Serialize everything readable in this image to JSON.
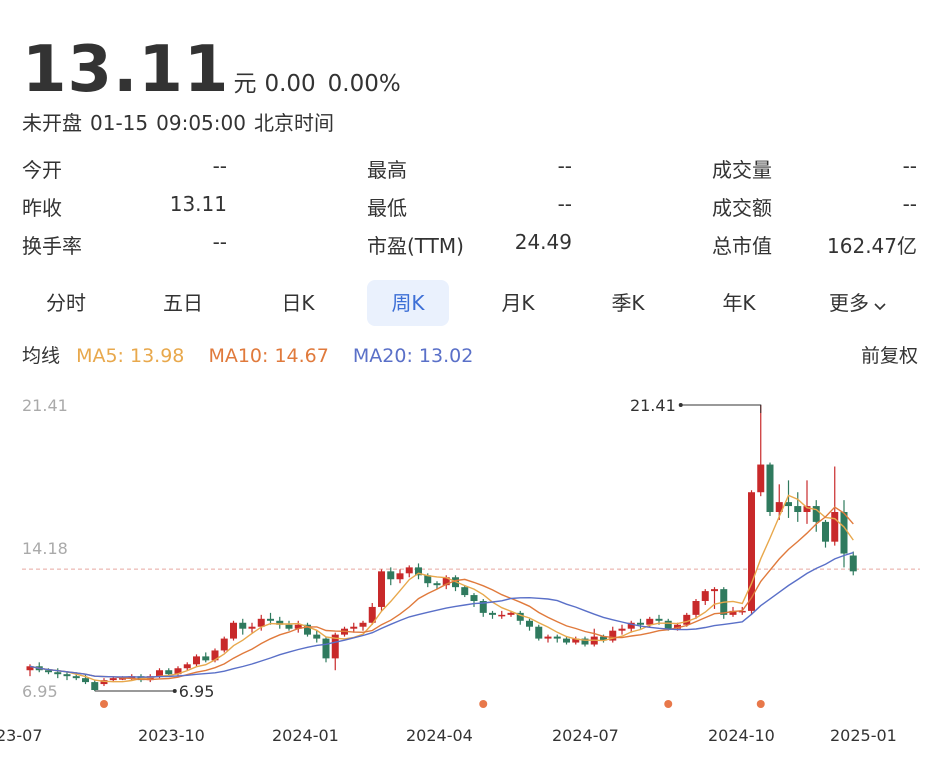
{
  "quote": {
    "price": "13.11",
    "unit": "元",
    "change": "0.00",
    "change_pct": "0.00%",
    "status": "未开盘",
    "date": "01-15",
    "time": "09:05:00",
    "timezone": "北京时间"
  },
  "stats": [
    {
      "label": "今开",
      "value": "--"
    },
    {
      "label": "最高",
      "value": "--"
    },
    {
      "label": "成交量",
      "value": "--"
    },
    {
      "label": "昨收",
      "value": "13.11"
    },
    {
      "label": "最低",
      "value": "--"
    },
    {
      "label": "成交额",
      "value": "--"
    },
    {
      "label": "换手率",
      "value": "--"
    },
    {
      "label": "市盈(TTM)",
      "value": "24.49"
    },
    {
      "label": "总市值",
      "value": "162.47亿"
    }
  ],
  "tabs": [
    "分时",
    "五日",
    "日K",
    "周K",
    "月K",
    "季K",
    "年K",
    "更多"
  ],
  "active_tab": "周K",
  "more_icon": "chevron-down-icon",
  "ma": {
    "title": "均线",
    "ma5": "MA5: 13.98",
    "ma10": "MA10: 14.67",
    "ma20": "MA20: 13.02",
    "adjust": "前复权"
  },
  "colors": {
    "up": "#c8292a",
    "down": "#2f7a5e",
    "ma5": "#e8a84c",
    "ma10": "#e07a3c",
    "ma20": "#5a70c8",
    "accent": "#3d6fd6",
    "ref_line": "#e8a8a0",
    "dot": "#e8784a"
  },
  "chart_data": {
    "type": "candlestick",
    "y_labels": [
      "21.41",
      "14.18",
      "6.95"
    ],
    "y_range": [
      6.95,
      21.41
    ],
    "reference_price": 13.11,
    "x_labels": [
      "23-07",
      "2023-10",
      "2024-01",
      "2024-04",
      "2024-07",
      "2024-10",
      "2025-01"
    ],
    "annotations": {
      "high": "21.41",
      "low": "6.95"
    },
    "candles": [
      [
        8.0,
        8.2,
        7.7,
        8.3
      ],
      [
        8.2,
        8.0,
        7.9,
        8.4
      ],
      [
        8.0,
        7.9,
        7.8,
        8.1
      ],
      [
        7.9,
        7.8,
        7.6,
        8.1
      ],
      [
        7.8,
        7.7,
        7.5,
        7.9
      ],
      [
        7.7,
        7.6,
        7.5,
        7.9
      ],
      [
        7.6,
        7.4,
        7.3,
        7.8
      ],
      [
        7.4,
        7.0,
        6.95,
        7.5
      ],
      [
        7.3,
        7.5,
        7.2,
        7.6
      ],
      [
        7.5,
        7.6,
        7.4,
        7.7
      ],
      [
        7.6,
        7.6,
        7.5,
        7.7
      ],
      [
        7.6,
        7.7,
        7.5,
        7.8
      ],
      [
        7.7,
        7.5,
        7.4,
        7.8
      ],
      [
        7.5,
        7.7,
        7.4,
        7.8
      ],
      [
        7.7,
        8.0,
        7.6,
        8.1
      ],
      [
        8.0,
        7.8,
        7.7,
        8.1
      ],
      [
        7.8,
        8.1,
        7.7,
        8.2
      ],
      [
        8.1,
        8.3,
        8.0,
        8.4
      ],
      [
        8.3,
        8.7,
        8.2,
        8.8
      ],
      [
        8.7,
        8.5,
        8.4,
        8.9
      ],
      [
        8.5,
        9.0,
        8.4,
        9.1
      ],
      [
        9.0,
        9.6,
        8.9,
        9.7
      ],
      [
        9.6,
        10.4,
        9.5,
        10.5
      ],
      [
        10.4,
        10.1,
        9.8,
        10.6
      ],
      [
        10.1,
        10.2,
        9.9,
        10.4
      ],
      [
        10.2,
        10.6,
        10.0,
        10.8
      ],
      [
        10.6,
        10.5,
        10.3,
        10.9
      ],
      [
        10.5,
        10.3,
        10.1,
        10.7
      ],
      [
        10.3,
        10.1,
        10.0,
        10.5
      ],
      [
        10.1,
        10.3,
        9.9,
        10.5
      ],
      [
        10.3,
        9.8,
        9.7,
        10.4
      ],
      [
        9.8,
        9.6,
        9.4,
        10.0
      ],
      [
        9.6,
        8.6,
        8.4,
        9.7
      ],
      [
        8.6,
        9.8,
        8.0,
        9.9
      ],
      [
        9.8,
        10.1,
        9.7,
        10.2
      ],
      [
        10.1,
        10.2,
        9.9,
        10.4
      ],
      [
        10.2,
        10.4,
        10.0,
        10.5
      ],
      [
        10.4,
        11.2,
        10.3,
        11.4
      ],
      [
        11.2,
        13.0,
        11.0,
        13.1
      ],
      [
        13.0,
        12.6,
        12.3,
        13.2
      ],
      [
        12.6,
        12.9,
        12.4,
        13.1
      ],
      [
        12.9,
        13.2,
        12.7,
        13.3
      ],
      [
        13.2,
        12.8,
        12.6,
        13.4
      ],
      [
        12.8,
        12.4,
        12.2,
        12.9
      ],
      [
        12.4,
        12.3,
        12.1,
        12.5
      ],
      [
        12.3,
        12.7,
        12.1,
        12.8
      ],
      [
        12.7,
        12.2,
        12.0,
        12.8
      ],
      [
        12.2,
        11.8,
        11.7,
        12.3
      ],
      [
        11.8,
        11.5,
        11.2,
        11.9
      ],
      [
        11.5,
        10.9,
        10.7,
        11.6
      ],
      [
        10.9,
        10.8,
        10.6,
        11.0
      ],
      [
        10.8,
        10.8,
        10.6,
        11.0
      ],
      [
        10.8,
        10.9,
        10.7,
        11.0
      ],
      [
        10.9,
        10.5,
        10.3,
        11.0
      ],
      [
        10.5,
        10.2,
        10.0,
        10.6
      ],
      [
        10.2,
        9.6,
        9.5,
        10.3
      ],
      [
        9.6,
        9.7,
        9.4,
        9.8
      ],
      [
        9.7,
        9.6,
        9.4,
        9.8
      ],
      [
        9.6,
        9.4,
        9.3,
        9.7
      ],
      [
        9.4,
        9.6,
        9.3,
        9.7
      ],
      [
        9.6,
        9.3,
        9.2,
        9.7
      ],
      [
        9.3,
        9.7,
        9.2,
        10.1
      ],
      [
        9.7,
        9.5,
        9.4,
        9.8
      ],
      [
        9.5,
        10.0,
        9.4,
        10.2
      ],
      [
        10.0,
        10.1,
        9.8,
        10.3
      ],
      [
        10.1,
        10.4,
        9.9,
        10.5
      ],
      [
        10.4,
        10.3,
        10.1,
        10.6
      ],
      [
        10.3,
        10.6,
        10.2,
        10.7
      ],
      [
        10.6,
        10.5,
        10.3,
        10.8
      ],
      [
        10.5,
        10.1,
        10.0,
        10.6
      ],
      [
        10.1,
        10.3,
        10.0,
        10.4
      ],
      [
        10.3,
        10.8,
        10.2,
        10.9
      ],
      [
        10.8,
        11.5,
        10.6,
        11.6
      ],
      [
        11.5,
        12.0,
        11.3,
        12.1
      ],
      [
        12.0,
        12.1,
        11.1,
        12.2
      ],
      [
        12.1,
        10.8,
        10.6,
        12.2
      ],
      [
        10.8,
        11.0,
        10.7,
        11.2
      ],
      [
        11.0,
        11.0,
        10.8,
        11.2
      ],
      [
        11.0,
        17.0,
        10.8,
        17.1
      ],
      [
        17.0,
        18.4,
        16.8,
        21.41
      ],
      [
        18.4,
        16.0,
        15.8,
        18.5
      ],
      [
        16.0,
        16.5,
        15.6,
        17.4
      ],
      [
        16.5,
        16.3,
        15.7,
        17.6
      ],
      [
        16.3,
        16.0,
        15.5,
        17.0
      ],
      [
        16.0,
        16.3,
        15.4,
        17.6
      ],
      [
        16.3,
        15.5,
        15.0,
        16.6
      ],
      [
        15.5,
        14.5,
        14.2,
        15.6
      ],
      [
        14.5,
        16.0,
        14.3,
        18.3
      ],
      [
        16.0,
        13.9,
        13.2,
        16.6
      ],
      [
        13.8,
        13.0,
        12.8,
        14.0
      ]
    ]
  }
}
